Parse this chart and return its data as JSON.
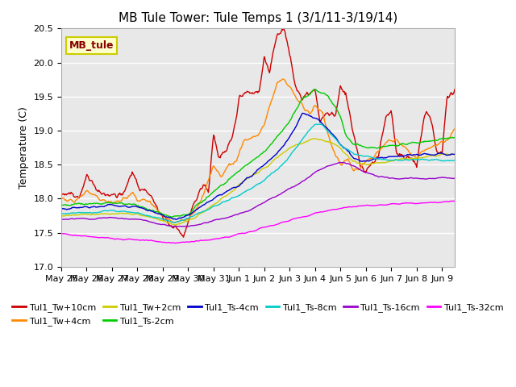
{
  "title": "MB Tule Tower: Tule Temps 1 (3/1/11-3/19/14)",
  "ylabel": "Temperature (C)",
  "ylim": [
    17.0,
    20.5
  ],
  "xlim": [
    0,
    15.5
  ],
  "xtick_labels": [
    "May 25",
    "May 26",
    "May 27",
    "May 28",
    "May 29",
    "May 30",
    "May 31",
    "Jun 1",
    "Jun 2",
    "Jun 3",
    "Jun 4",
    "Jun 5",
    "Jun 6",
    "Jun 7",
    "Jun 8",
    "Jun 9"
  ],
  "ytick_values": [
    17.0,
    17.5,
    18.0,
    18.5,
    19.0,
    19.5,
    20.0,
    20.5
  ],
  "series_colors": {
    "Tul1_Tw+10cm": "#cc0000",
    "Tul1_Tw+4cm": "#ff8800",
    "Tul1_Tw+2cm": "#cccc00",
    "Tul1_Ts-2cm": "#00cc00",
    "Tul1_Ts-4cm": "#0000cc",
    "Tul1_Ts-8cm": "#00cccc",
    "Tul1_Ts-16cm": "#9900cc",
    "Tul1_Ts-32cm": "#ff00ff"
  },
  "background_color": "#ffffff",
  "plot_bg_color": "#e8e8e8",
  "grid_color": "#ffffff",
  "legend_box_color": "#ffffcc",
  "legend_box_edge": "#cccc00",
  "legend_text": "MB_tule",
  "legend_text_color": "#880000",
  "title_fontsize": 11,
  "label_fontsize": 9,
  "tick_fontsize": 8,
  "legend_fontsize": 8
}
